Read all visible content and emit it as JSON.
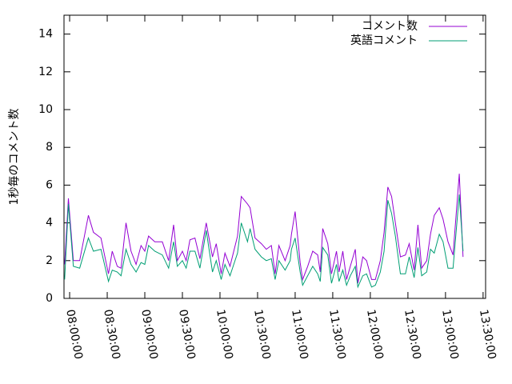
{
  "chart_data": {
    "type": "line",
    "y_label": "1秒毎のコメント数",
    "x": [
      476,
      479,
      483,
      488,
      495,
      499,
      505,
      511,
      514,
      518,
      521,
      525,
      529,
      533,
      537,
      540,
      543,
      548,
      554,
      559,
      563,
      566,
      570,
      573,
      576,
      580,
      584,
      589,
      594,
      597,
      601,
      604,
      608,
      611,
      614,
      617,
      622,
      624,
      628,
      633,
      637,
      641,
      644,
      647,
      652,
      656,
      657,
      660,
      664,
      666,
      670,
      674,
      678,
      680,
      682,
      686,
      689,
      693,
      695,
      698,
      701,
      704,
      708,
      710,
      714,
      717,
      721,
      724,
      728,
      731,
      734,
      737,
      740,
      744,
      748,
      751,
      755,
      758,
      761,
      765,
      768,
      771,
      775,
      778,
      782,
      786,
      791,
      794
    ],
    "series": [
      {
        "name": "コメント数",
        "color": "#9400d3",
        "values": [
          1.8,
          5.3,
          2.0,
          2.0,
          4.4,
          3.5,
          3.2,
          1.3,
          2.5,
          1.7,
          1.6,
          4.0,
          2.5,
          1.8,
          2.8,
          2.5,
          3.3,
          3.0,
          3.0,
          2.0,
          3.9,
          2.0,
          2.5,
          2.0,
          3.1,
          3.2,
          2.1,
          4.0,
          2.2,
          2.9,
          1.3,
          2.4,
          1.7,
          2.5,
          3.3,
          5.4,
          5.0,
          4.8,
          3.2,
          2.9,
          2.6,
          2.8,
          1.3,
          2.8,
          2.0,
          2.8,
          3.4,
          4.6,
          1.9,
          1.0,
          1.7,
          2.5,
          2.3,
          1.4,
          3.7,
          2.9,
          1.3,
          2.5,
          1.4,
          2.5,
          1.0,
          1.7,
          2.6,
          0.8,
          2.2,
          2.0,
          1.0,
          1.0,
          2.0,
          3.5,
          5.9,
          5.4,
          4.0,
          2.2,
          2.3,
          2.9,
          1.5,
          3.9,
          1.6,
          2.0,
          3.4,
          4.4,
          4.8,
          4.2,
          3.0,
          2.3,
          6.6,
          2.2
        ]
      },
      {
        "name": "英語コメント",
        "color": "#009e73",
        "values": [
          1.0,
          5.0,
          1.7,
          1.6,
          3.2,
          2.5,
          2.6,
          0.9,
          1.5,
          1.4,
          1.2,
          2.6,
          1.8,
          1.4,
          1.9,
          1.8,
          2.8,
          2.5,
          2.3,
          1.6,
          3.0,
          1.7,
          2.0,
          1.6,
          2.5,
          2.5,
          1.6,
          3.6,
          1.4,
          2.0,
          1.0,
          1.8,
          1.2,
          1.8,
          2.4,
          4.0,
          3.0,
          3.7,
          2.6,
          2.2,
          2.0,
          2.1,
          1.0,
          2.0,
          1.5,
          2.0,
          2.6,
          3.2,
          1.4,
          0.7,
          1.2,
          1.7,
          1.3,
          0.9,
          2.7,
          2.3,
          0.8,
          1.8,
          0.9,
          1.5,
          0.7,
          1.2,
          1.7,
          0.6,
          1.2,
          1.3,
          0.6,
          0.7,
          1.4,
          2.5,
          5.2,
          4.5,
          3.3,
          1.3,
          1.3,
          2.2,
          1.1,
          2.7,
          1.2,
          1.4,
          2.6,
          2.4,
          3.4,
          3.0,
          1.6,
          1.6,
          5.5,
          2.5
        ]
      }
    ],
    "xlim": [
      475.5,
      812
    ],
    "xticks": [
      {
        "value": 480,
        "label": "08:00:00"
      },
      {
        "value": 510,
        "label": "08:30:00"
      },
      {
        "value": 540,
        "label": "09:00:00"
      },
      {
        "value": 570,
        "label": "09:30:00"
      },
      {
        "value": 600,
        "label": "10:00:00"
      },
      {
        "value": 630,
        "label": "10:30:00"
      },
      {
        "value": 660,
        "label": "11:00:00"
      },
      {
        "value": 690,
        "label": "11:30:00"
      },
      {
        "value": 720,
        "label": "12:00:00"
      },
      {
        "value": 750,
        "label": "12:30:00"
      },
      {
        "value": 780,
        "label": "13:00:00"
      },
      {
        "value": 810,
        "label": "13:30:00"
      }
    ],
    "ylim": [
      0,
      15
    ],
    "yticks": [
      0,
      2,
      4,
      6,
      8,
      10,
      12,
      14
    ],
    "legend": "top-right"
  }
}
